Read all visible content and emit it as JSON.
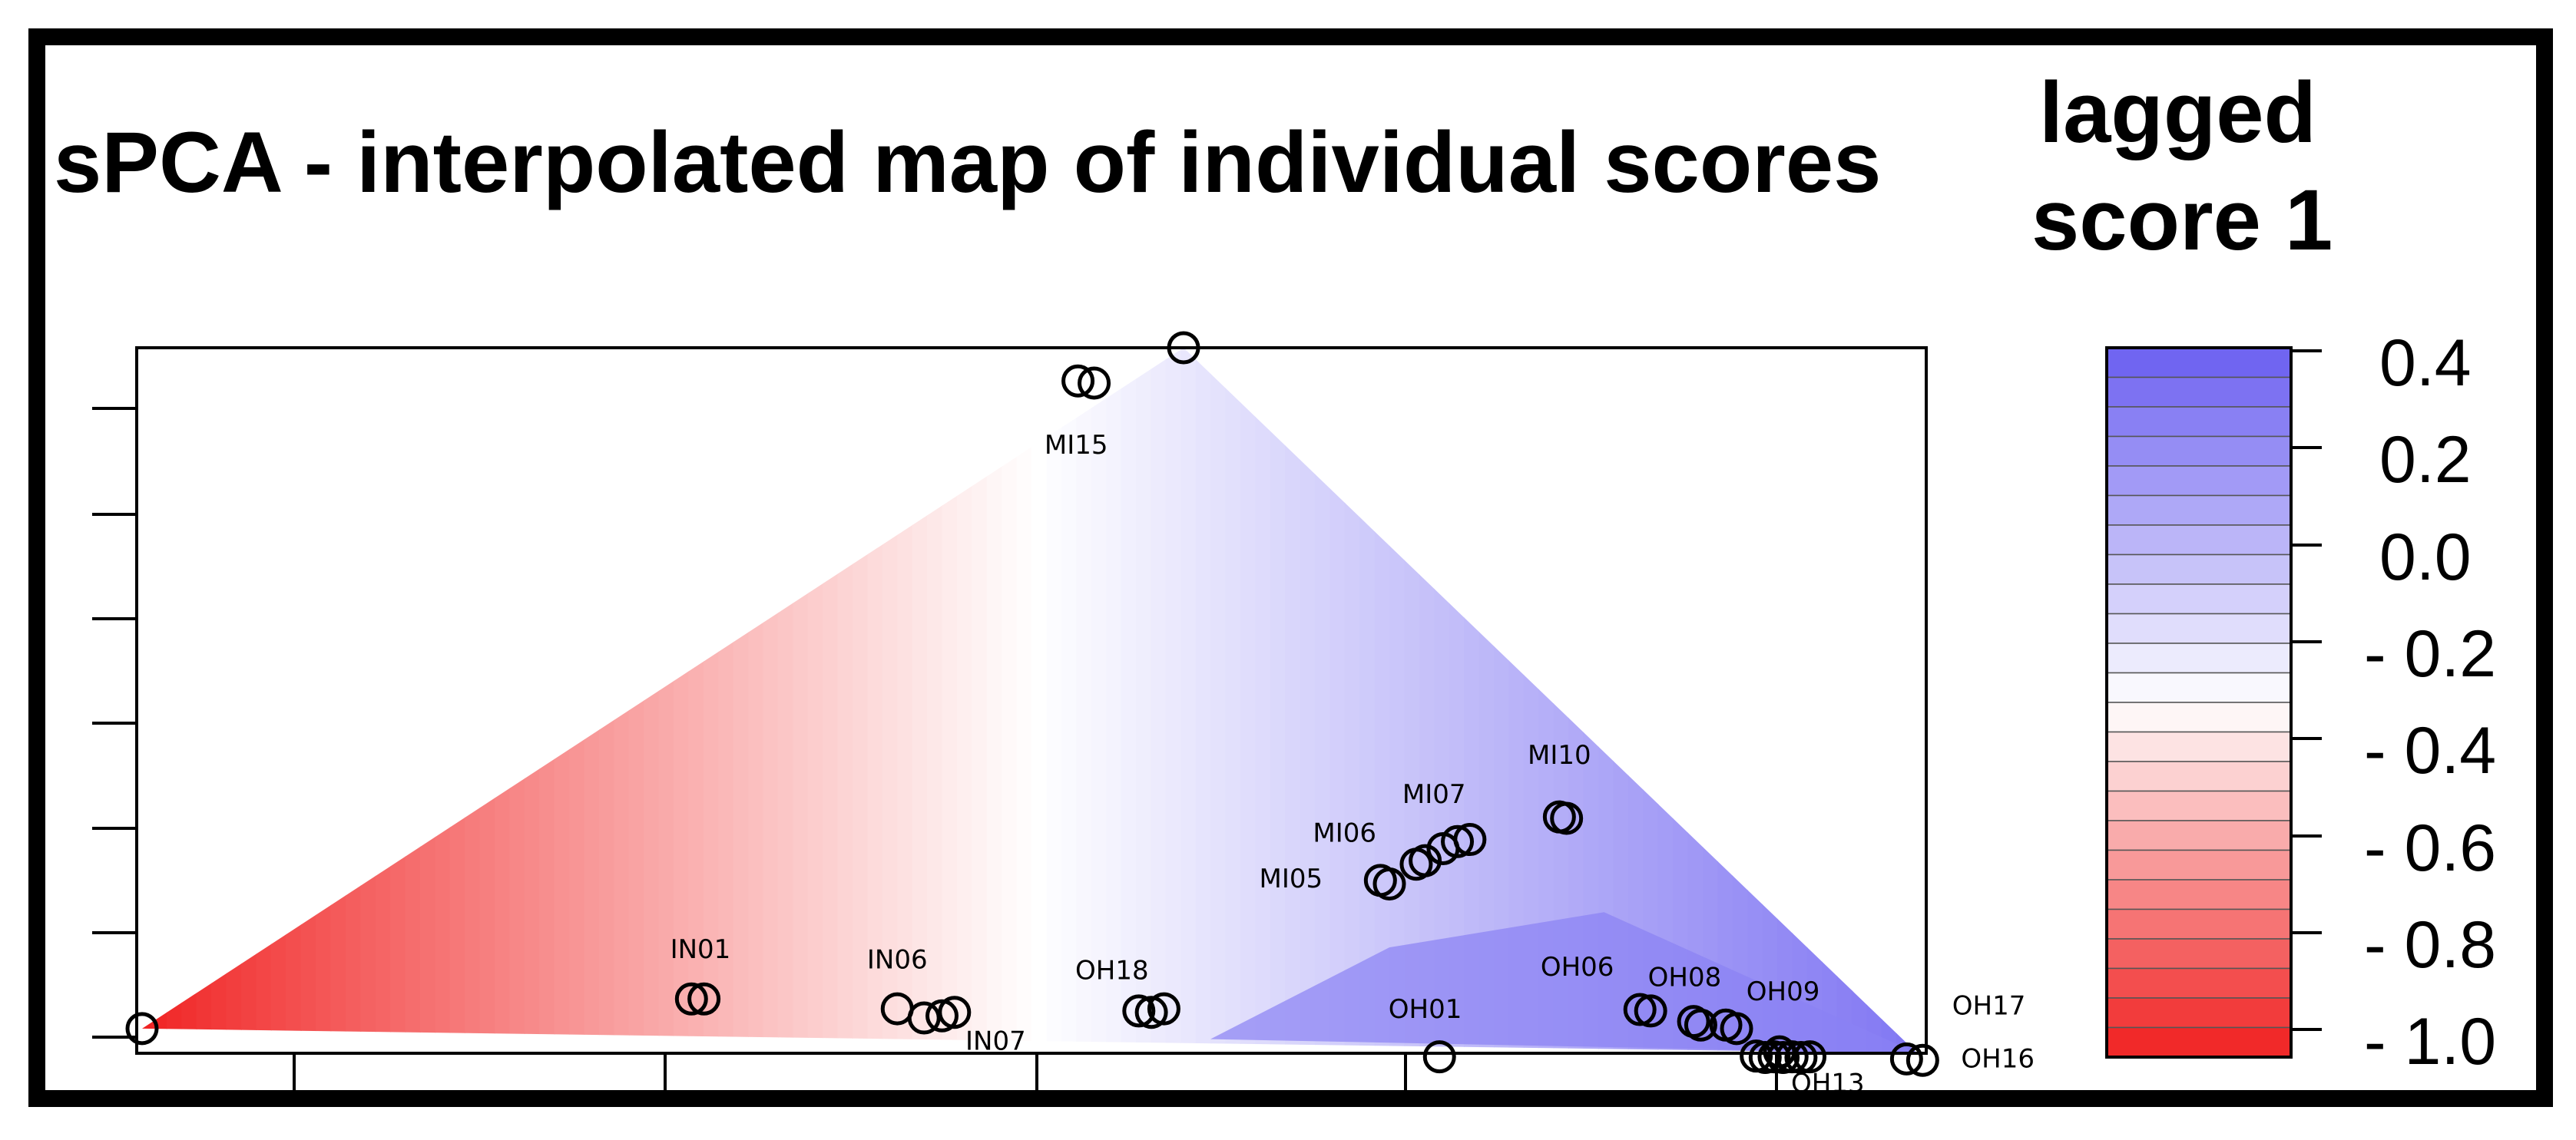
{
  "chart_data": {
    "type": "scatter",
    "title": "sPCA - interpolated map of individual scores",
    "legend_title_line1": "lagged",
    "legend_title_line2": "score 1",
    "legend_ticks": [
      "0.4",
      "0.2",
      "0.0",
      "- 0.2",
      "- 0.4",
      "- 0.6",
      "- 0.8",
      "- 1.0"
    ],
    "color_scale": {
      "min": -1.0,
      "max": 0.4,
      "low_color": "#f02020",
      "mid_color": "#ffffff",
      "high_color": "#6a5ef0",
      "bands": 24
    },
    "xlim": [
      0,
      100
    ],
    "ylim": [
      0,
      100
    ],
    "surface_polygon": [
      [
        0.3,
        3.5
      ],
      [
        58.5,
        100
      ],
      [
        99.5,
        0
      ],
      [
        0.3,
        3.5
      ]
    ],
    "labeled_sites": [
      {
        "label": "MI15",
        "x": 52.5,
        "y": 85
      },
      {
        "label": "MI10",
        "x": 79.5,
        "y": 41
      },
      {
        "label": "MI07",
        "x": 72.5,
        "y": 35.5
      },
      {
        "label": "MI06",
        "x": 67.5,
        "y": 30
      },
      {
        "label": "MI05",
        "x": 64.5,
        "y": 23.5
      },
      {
        "label": "IN01",
        "x": 31.5,
        "y": 13.5
      },
      {
        "label": "IN06",
        "x": 42.5,
        "y": 12
      },
      {
        "label": "OH18",
        "x": 54.5,
        "y": 10.5
      },
      {
        "label": "OH06",
        "x": 80.5,
        "y": 11
      },
      {
        "label": "OH08",
        "x": 86.5,
        "y": 9.5
      },
      {
        "label": "OH09",
        "x": 92,
        "y": 7.5
      },
      {
        "label": "OH01",
        "x": 72,
        "y": 5
      },
      {
        "label": "IN07",
        "x": 48,
        "y": 0.5
      },
      {
        "label": "OH17",
        "x": 103.5,
        "y": 5.5
      },
      {
        "label": "OH16",
        "x": 104,
        "y": -2
      },
      {
        "label": "OH13",
        "x": 94.5,
        "y": -5.5
      }
    ],
    "points": [
      [
        52.6,
        95.3
      ],
      [
        53.5,
        95.0
      ],
      [
        58.5,
        100.0
      ],
      [
        0.3,
        3.5
      ],
      [
        31.0,
        7.7
      ],
      [
        31.7,
        7.7
      ],
      [
        42.5,
        6.3
      ],
      [
        44.0,
        5.0
      ],
      [
        45.0,
        5.3
      ],
      [
        45.7,
        5.8
      ],
      [
        56.0,
        6.0
      ],
      [
        56.7,
        5.8
      ],
      [
        57.4,
        6.3
      ],
      [
        69.5,
        24.5
      ],
      [
        70.0,
        24.0
      ],
      [
        71.5,
        26.8
      ],
      [
        72.0,
        27.3
      ],
      [
        73.0,
        29.0
      ],
      [
        73.8,
        30.0
      ],
      [
        74.5,
        30.3
      ],
      [
        79.5,
        33.5
      ],
      [
        79.9,
        33.3
      ],
      [
        72.8,
        -0.5
      ],
      [
        84.0,
        6.2
      ],
      [
        84.6,
        6.0
      ],
      [
        87.0,
        4.5
      ],
      [
        87.4,
        4.0
      ],
      [
        88.8,
        4.0
      ],
      [
        89.4,
        3.5
      ],
      [
        90.5,
        -0.4
      ],
      [
        91.0,
        -0.6
      ],
      [
        91.5,
        -0.5
      ],
      [
        92.0,
        -0.6
      ],
      [
        92.5,
        -0.5
      ],
      [
        93.0,
        -0.6
      ],
      [
        93.5,
        -0.5
      ],
      [
        91.8,
        0.2
      ],
      [
        98.9,
        -0.8
      ],
      [
        99.8,
        -1.0
      ]
    ]
  }
}
